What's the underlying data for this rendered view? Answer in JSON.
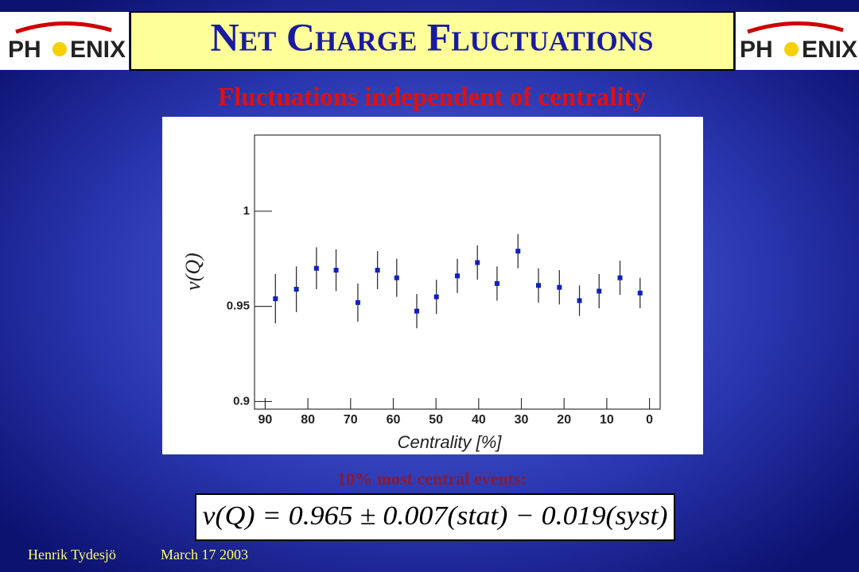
{
  "header": {
    "title": "Net Charge Fluctuations",
    "logo": [
      "PH",
      "ENIX"
    ]
  },
  "subtitle": "Fluctuations independent of centrality",
  "chart_data": {
    "type": "scatter",
    "x": [
      87.6,
      82.7,
      78.0,
      73.4,
      68.3,
      63.7,
      59.2,
      54.5,
      49.9,
      45.0,
      40.3,
      35.7,
      30.8,
      26.0,
      21.1,
      16.4,
      11.8,
      6.9,
      2.2
    ],
    "series": [
      {
        "color": "#1020c0",
        "values": [
          0.954,
          0.959,
          0.97,
          0.969,
          0.952,
          0.969,
          0.965,
          0.9475,
          0.955,
          0.966,
          0.973,
          0.962,
          0.979,
          0.961,
          0.96,
          0.953,
          0.958,
          0.965,
          0.957
        ],
        "errors": [
          0.013,
          0.012,
          0.011,
          0.011,
          0.01,
          0.01,
          0.01,
          0.009,
          0.009,
          0.009,
          0.009,
          0.009,
          0.009,
          0.009,
          0.009,
          0.008,
          0.009,
          0.009,
          0.008
        ]
      }
    ],
    "xlabel": "Centrality [%]",
    "ylabel": "ν(Q)",
    "xlim": [
      92.5,
      -2.5
    ],
    "xticks": [
      90,
      80,
      70,
      60,
      50,
      40,
      30,
      20,
      10,
      0
    ],
    "ylim": [
      0.896,
      1.04
    ],
    "yticks": [
      0.9,
      0.95,
      1
    ]
  },
  "note": "10% most central events:",
  "equation": "v(Q) = 0.965 ± 0.007(stat) − 0.019(syst)",
  "footer": {
    "author": "Henrik Tydesjö",
    "date": "March 17 2003"
  }
}
